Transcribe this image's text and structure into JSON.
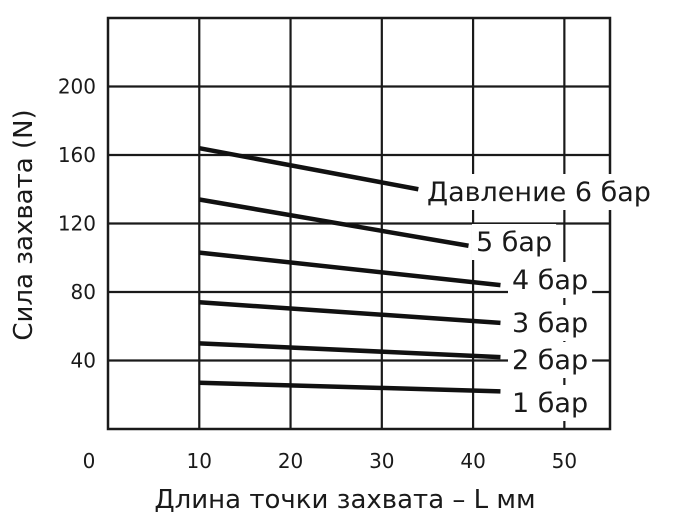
{
  "chart_data": {
    "type": "line",
    "title": "",
    "xlabel": "Длина точки захвата – L мм",
    "ylabel": "Сила захвата (N)",
    "xlim": [
      0,
      55
    ],
    "ylim": [
      0,
      240
    ],
    "x_ticks": [
      {
        "value": 0,
        "label": "0"
      },
      {
        "value": 10,
        "label": "10"
      },
      {
        "value": 20,
        "label": "20"
      },
      {
        "value": 30,
        "label": "30"
      },
      {
        "value": 40,
        "label": "40"
      },
      {
        "value": 50,
        "label": "50"
      }
    ],
    "y_ticks": [
      {
        "value": 40,
        "label": "40"
      },
      {
        "value": 80,
        "label": "80"
      },
      {
        "value": 120,
        "label": "120"
      },
      {
        "value": 160,
        "label": "160"
      },
      {
        "value": 200,
        "label": "200"
      }
    ],
    "grid": true,
    "series": [
      {
        "name": "Давление 6 бар",
        "x": [
          10,
          34
        ],
        "y": [
          164,
          140
        ]
      },
      {
        "name": "5 бар",
        "x": [
          10,
          39.5
        ],
        "y": [
          134,
          107
        ]
      },
      {
        "name": "4 бар",
        "x": [
          10,
          43
        ],
        "y": [
          103,
          84
        ]
      },
      {
        "name": "3 бар",
        "x": [
          10,
          43
        ],
        "y": [
          74,
          62
        ]
      },
      {
        "name": "2 бар",
        "x": [
          10,
          43
        ],
        "y": [
          50,
          42
        ]
      },
      {
        "name": "1 бар",
        "x": [
          10,
          43
        ],
        "y": [
          27,
          22
        ]
      }
    ]
  }
}
